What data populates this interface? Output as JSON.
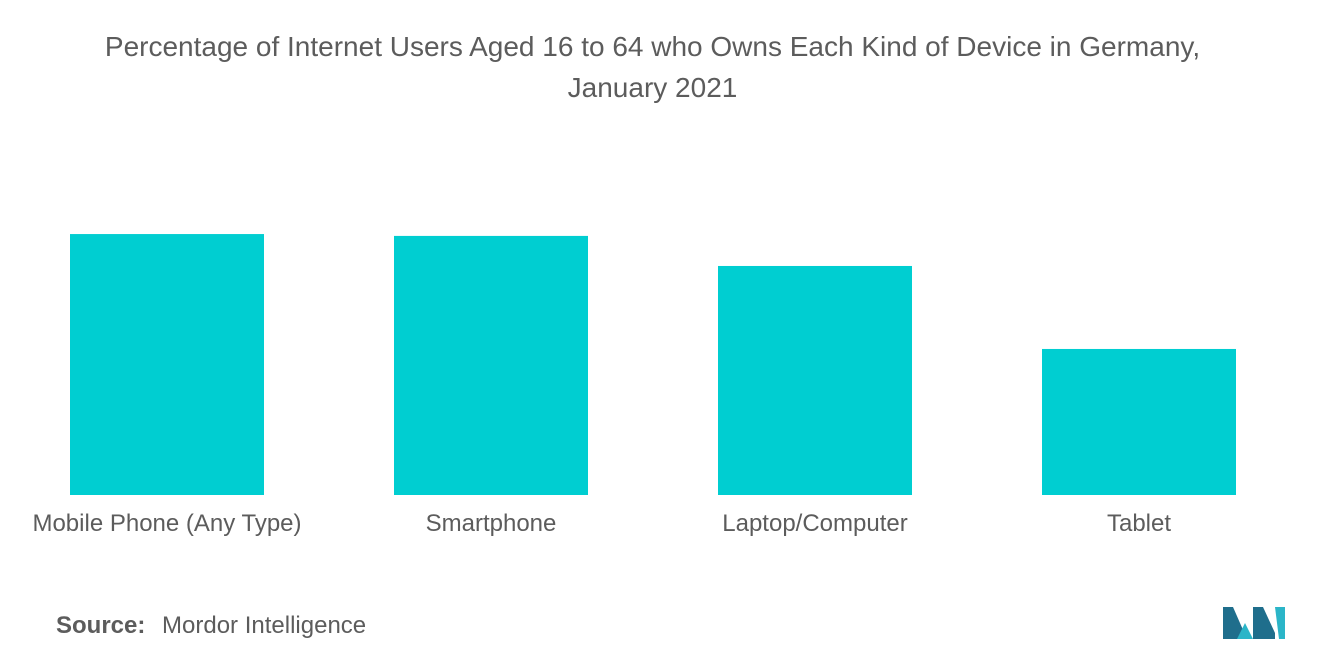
{
  "title_line1": "Percentage of Internet Users Aged 16 to 64 who Owns Each Kind of Device in Germany,",
  "title_line2": "January 2021",
  "source_label": "Source:",
  "source_text": "Mordor Intelligence",
  "colors": {
    "bar": "#00CED1",
    "text": "#5C5C5C",
    "logo_dark": "#1F6E8C",
    "logo_light": "#2BB5C8"
  },
  "chart_data": {
    "type": "bar",
    "categories": [
      "Mobile Phone (Any Type)",
      "Smartphone",
      "Laptop/Computer",
      "Tablet"
    ],
    "values": [
      98.1,
      97.4,
      86.1,
      54.9
    ],
    "title": "Percentage of Internet Users Aged 16 to 64 who Owns Each Kind of Device in Germany, January 2021",
    "xlabel": "",
    "ylabel": "",
    "ylim": [
      0,
      100
    ],
    "grid": false,
    "legend": "none"
  }
}
